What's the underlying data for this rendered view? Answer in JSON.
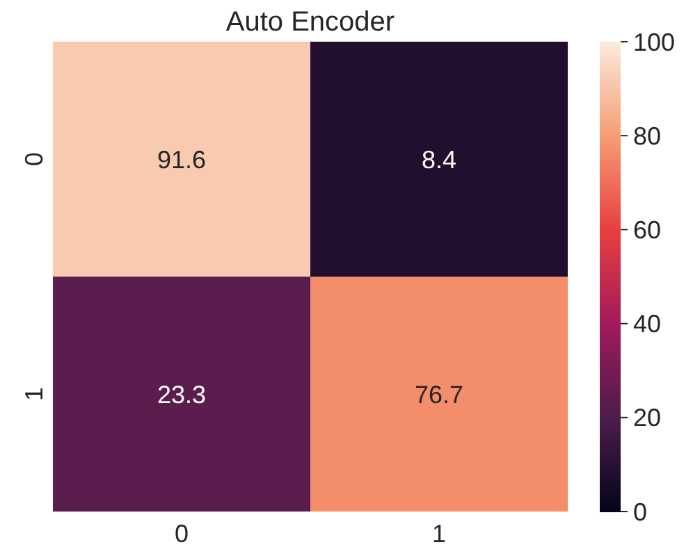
{
  "chart_data": {
    "type": "heatmap",
    "title": "Auto Encoder",
    "categories": [
      "0",
      "1"
    ],
    "y_categories": [
      "0",
      "1"
    ],
    "cells": [
      [
        91.6,
        8.4
      ],
      [
        23.3,
        76.7
      ]
    ],
    "clim": [
      0,
      100
    ],
    "cticks": [
      0,
      20,
      40,
      60,
      80,
      100
    ],
    "data_labels": true
  }
}
